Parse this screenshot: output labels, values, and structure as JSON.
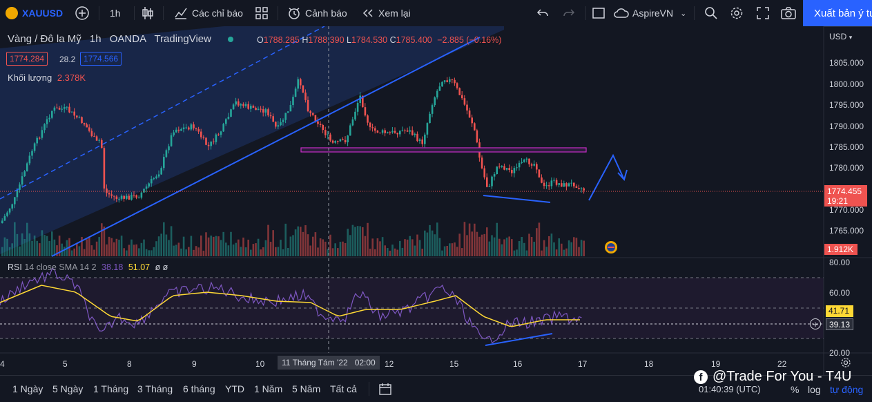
{
  "toolbar": {
    "symbol": "XAUUSD",
    "interval": "1h",
    "indicators_label": "Các chỉ báo",
    "alert_label": "Cảnh báo",
    "replay_label": "Xem lại",
    "layout_name": "AspireVN",
    "publish_label": "Xuất bản ý tư"
  },
  "legend": {
    "title": "Vàng / Đô la Mỹ",
    "interval": "1h",
    "exchange": "OANDA",
    "source": "TradingView",
    "open_label": "O",
    "open": "1788.285",
    "high_label": "H",
    "high": "1788.390",
    "low_label": "L",
    "low": "1784.530",
    "close_label": "C",
    "close": "1785.400",
    "change": "−2.885 (−0.16%)",
    "bid": "1774.284",
    "spread": "28.2",
    "ask": "1774.566",
    "volume_label": "Khối lượng",
    "volume": "2.378K"
  },
  "price_axis": {
    "currency": "USD",
    "ticks": [
      "1805.000",
      "1800.000",
      "1795.000",
      "1790.000",
      "1785.000",
      "1780.000",
      "1770.000",
      "1765.000"
    ],
    "current_price": "1774.455",
    "countdown": "19:21",
    "volume_badge": "1.912K"
  },
  "rsi": {
    "label": "RSI",
    "params": "14 close SMA 14 2",
    "value1": "38.18",
    "value2": "51.07",
    "extra": "ø ø",
    "ticks": [
      "80.00",
      "60.00",
      "20.00"
    ],
    "badge_ma": "41.71",
    "badge_rsi": "39.13"
  },
  "time_axis": {
    "ticks": [
      "4",
      "5",
      "8",
      "9",
      "10",
      "12",
      "15",
      "16",
      "17",
      "18",
      "19",
      "22"
    ],
    "crosshair_label": "11 Tháng Tám '22   02:00"
  },
  "bottom": {
    "ranges": [
      "1 Ngày",
      "5 Ngày",
      "1 Tháng",
      "3 Tháng",
      "6 tháng",
      "YTD",
      "1 Năm",
      "5 Năm",
      "Tất cả"
    ],
    "watermark": "@Trade For You - T4U",
    "clock": "01:40:39 (UTC)",
    "pct": "%",
    "log": "log",
    "auto": "tự động"
  },
  "colors": {
    "up": "#26a69a",
    "down": "#ef5350",
    "accent": "#2962ff",
    "rsi": "#7e57c2",
    "rsi_ma": "#fdd835"
  }
}
